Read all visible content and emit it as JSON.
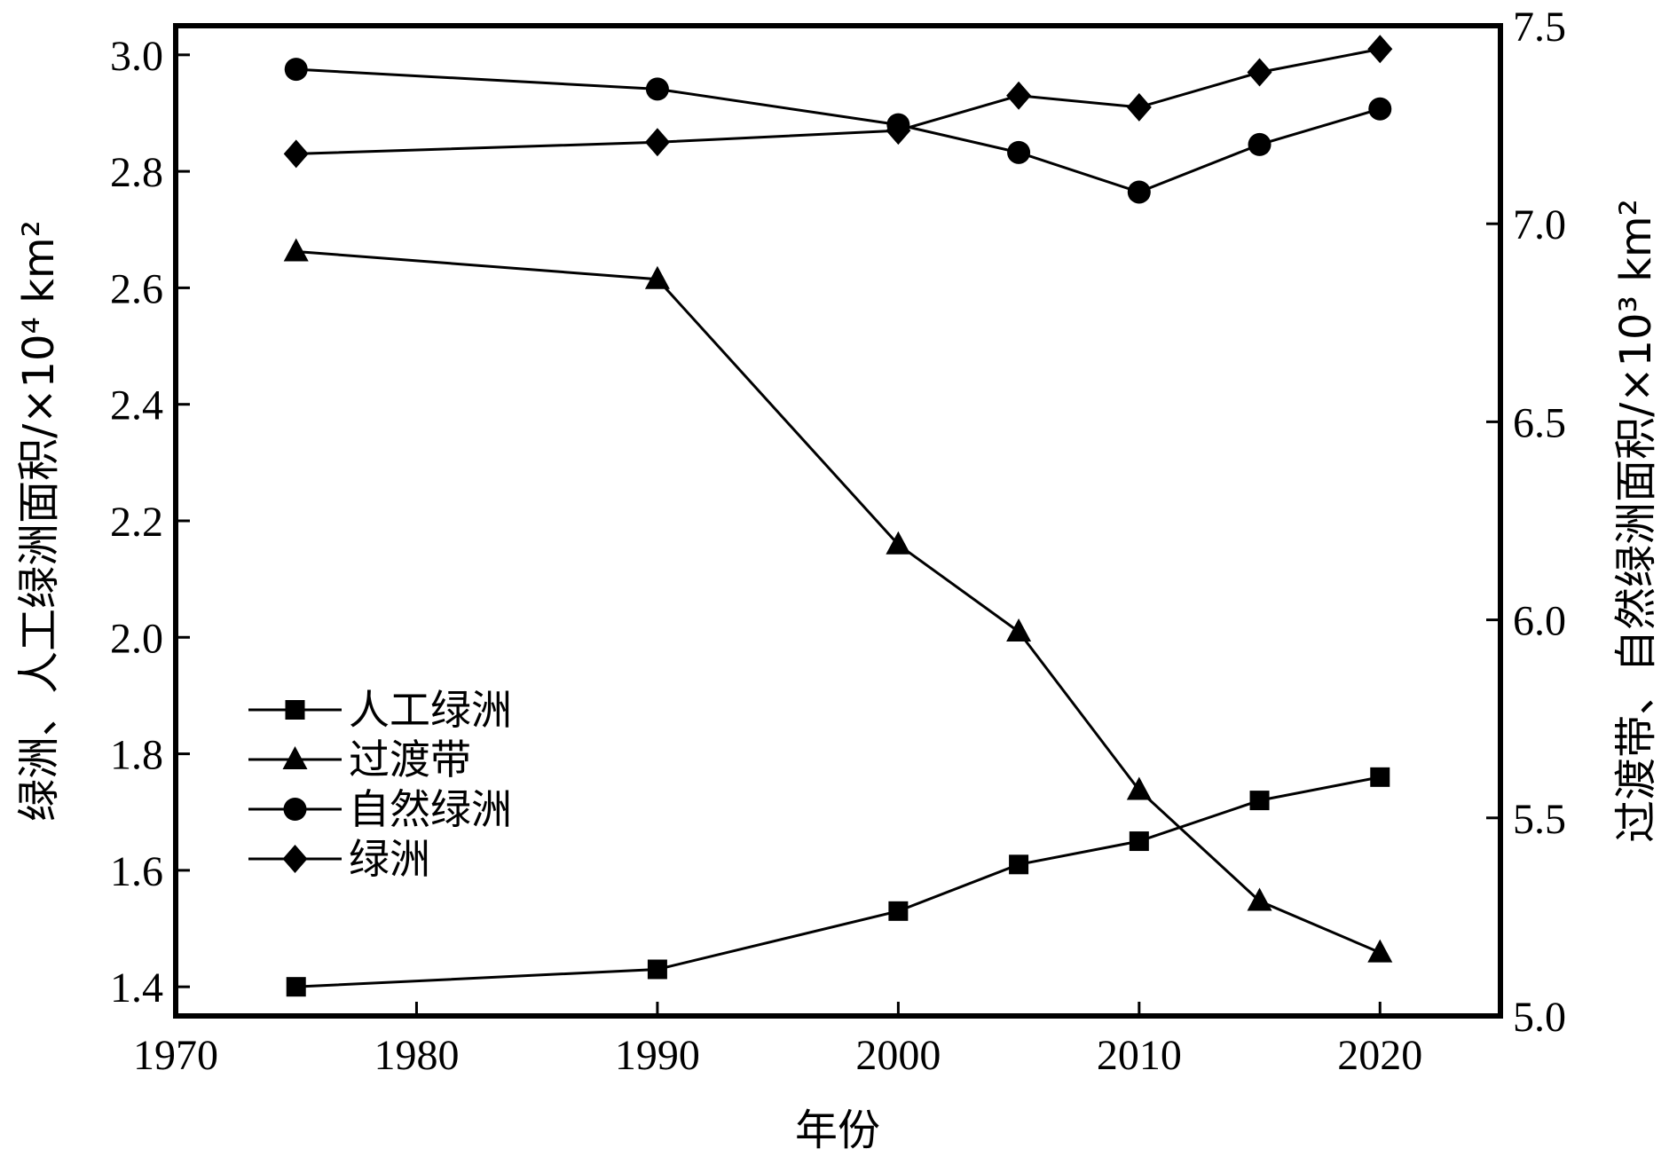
{
  "chart_data": {
    "type": "line",
    "title": "",
    "xlabel": "年份",
    "ylabel_left": "绿洲、人工绿洲面积/×10⁴ km²",
    "ylabel_right": "过渡带、自然绿洲面积/×10³ km²",
    "xlim": [
      1970,
      2025
    ],
    "ylim_left": [
      1.35,
      3.05
    ],
    "ylim_right": [
      5.0,
      7.5
    ],
    "x_ticks": [
      "1970",
      "1980",
      "1990",
      "2000",
      "2010",
      "2020"
    ],
    "y_left_ticks": [
      "1.4",
      "1.6",
      "1.8",
      "2.0",
      "2.2",
      "2.4",
      "2.6",
      "2.8",
      "3.0"
    ],
    "y_right_ticks": [
      "5.0",
      "5.5",
      "6.0",
      "6.5",
      "7.0",
      "7.5"
    ],
    "grid": false,
    "legend_position": "lower-left",
    "x": [
      1975,
      1990,
      2000,
      2005,
      2010,
      2015,
      2020
    ],
    "series": [
      {
        "name": "人工绿洲",
        "axis": "left",
        "marker": "square",
        "values": [
          1.4,
          1.43,
          1.53,
          1.61,
          1.65,
          1.72,
          1.76
        ]
      },
      {
        "name": "过渡带",
        "axis": "right",
        "marker": "triangle",
        "values": [
          6.93,
          6.86,
          6.19,
          5.97,
          5.57,
          5.29,
          5.16
        ]
      },
      {
        "name": "自然绿洲",
        "axis": "right",
        "marker": "circle",
        "values": [
          7.39,
          7.34,
          7.25,
          7.18,
          7.08,
          7.2,
          7.29
        ]
      },
      {
        "name": "绿洲",
        "axis": "left",
        "marker": "diamond",
        "values": [
          2.83,
          2.85,
          2.87,
          2.93,
          2.91,
          2.97,
          3.01
        ]
      }
    ]
  }
}
